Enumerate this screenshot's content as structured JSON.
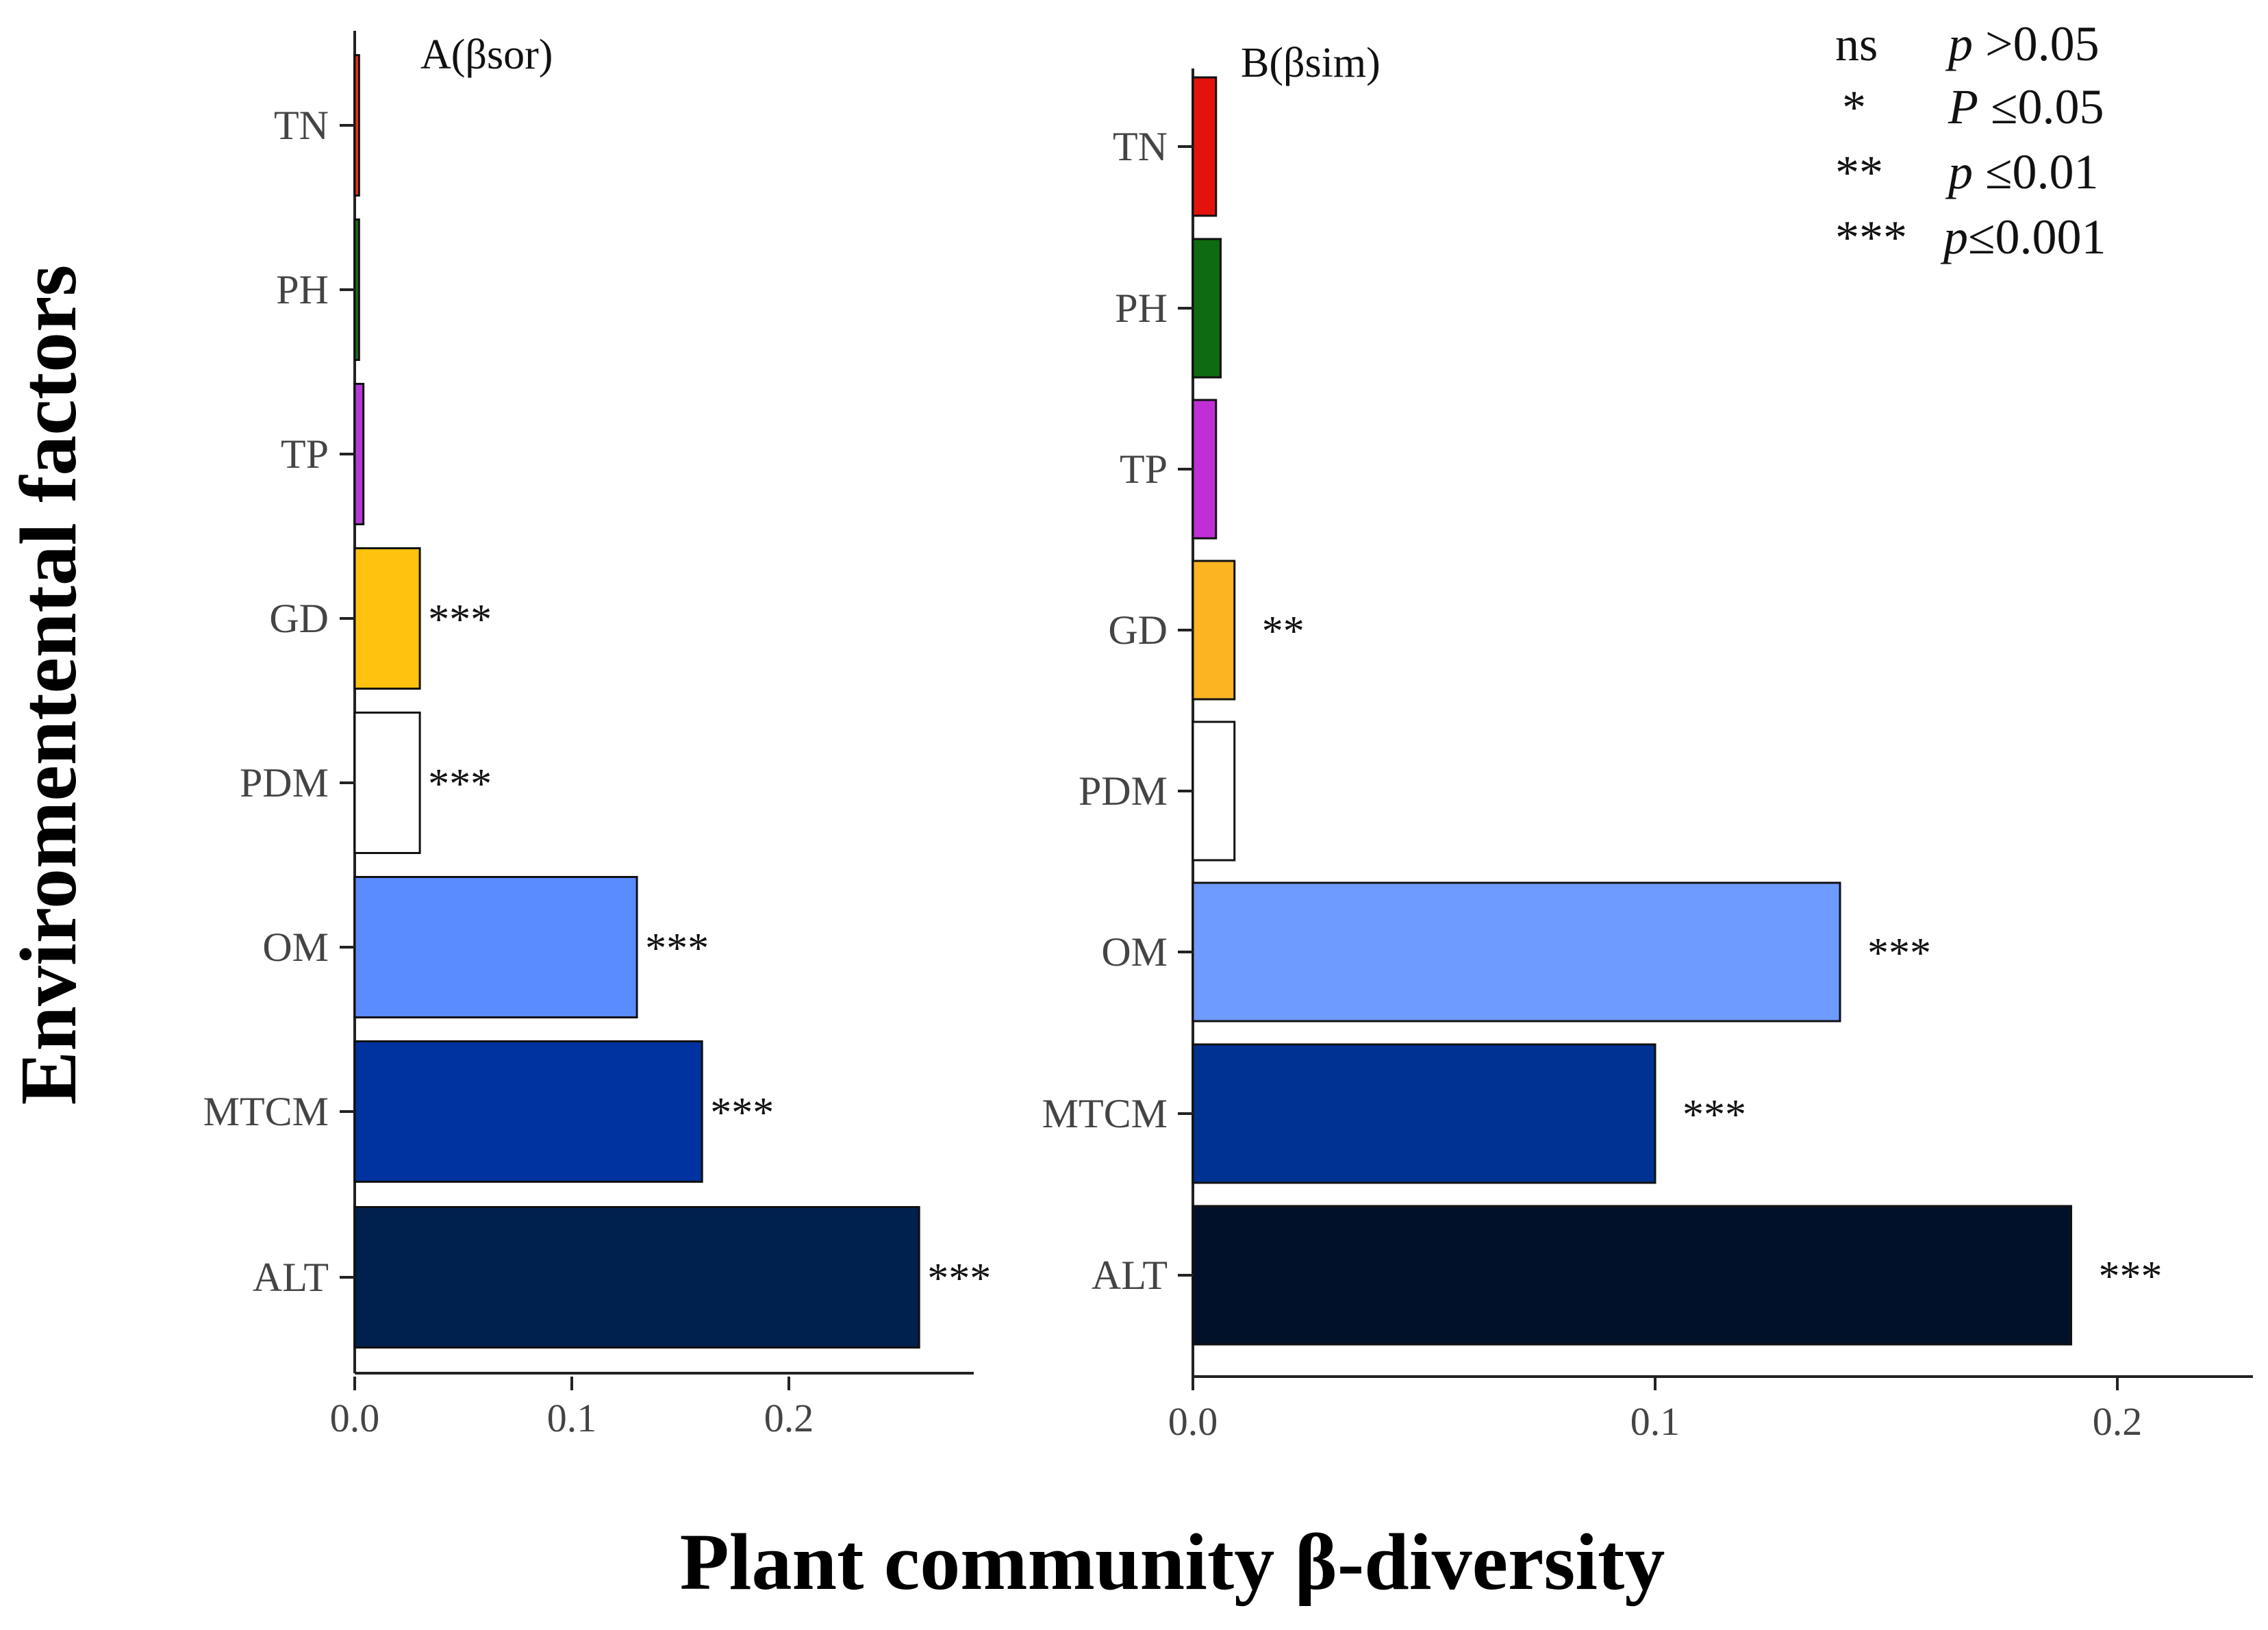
{
  "chart_data": [
    {
      "type": "bar",
      "orientation": "horizontal",
      "title": "A(βsor)",
      "categories": [
        "TN",
        "PH",
        "TP",
        "GD",
        "PDM",
        "OM",
        "MTCM",
        "ALT"
      ],
      "values": [
        0.002,
        0.002,
        0.004,
        0.03,
        0.03,
        0.13,
        0.16,
        0.26
      ],
      "significance": [
        "",
        "",
        "",
        "***",
        "***",
        "***",
        "***",
        "***"
      ],
      "colors": [
        "#e8341c",
        "#1e6b1a",
        "#b43ad8",
        "#ffc20e",
        "#ffffff",
        "#5a8bff",
        "#0033a0",
        "#00204e"
      ],
      "xlim": [
        0,
        0.28
      ],
      "xticks": [
        0.0,
        0.1,
        0.2
      ],
      "xtick_labels": [
        "0.0",
        "0.1",
        "0.2"
      ]
    },
    {
      "type": "bar",
      "orientation": "horizontal",
      "title": "B(βsim)",
      "categories": [
        "TN",
        "PH",
        "TP",
        "GD",
        "PDM",
        "OM",
        "MTCM",
        "ALT"
      ],
      "values": [
        0.005,
        0.006,
        0.005,
        0.009,
        0.009,
        0.14,
        0.1,
        0.19
      ],
      "significance": [
        "",
        "",
        "",
        "**",
        "",
        "***",
        "***",
        "***"
      ],
      "colors": [
        "#e3130c",
        "#0f6b0f",
        "#c02fd6",
        "#fcb521",
        "#ffffff",
        "#6e9bff",
        "#003293",
        "#02112a"
      ],
      "xlim": [
        0,
        0.23
      ],
      "xticks": [
        0.0,
        0.1,
        0.2
      ],
      "xtick_labels": [
        "0.0",
        "0.1",
        "0.2"
      ]
    }
  ],
  "ylabel": "Enviromentental  factors",
  "xlabel": "Plant community β-diversity",
  "legend": [
    {
      "symbol": "ns",
      "pvar": "p",
      "rel": " >0.05"
    },
    {
      "symbol": "*",
      "pvar": "P",
      "rel": " ≤0.05"
    },
    {
      "symbol": "**",
      "pvar": "p",
      "rel": " ≤0.01"
    },
    {
      "symbol": "***",
      "pvar": "p",
      "rel": "≤0.001"
    }
  ]
}
